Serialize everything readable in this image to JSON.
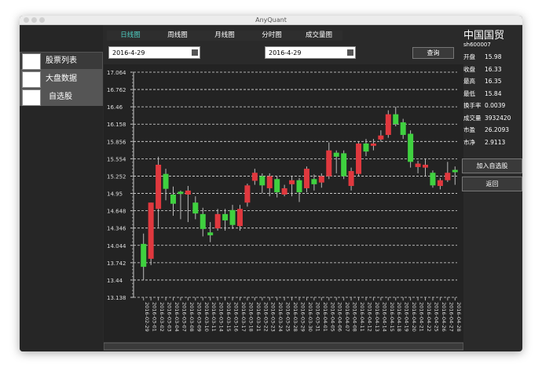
{
  "window": {
    "title": "AnyQuant"
  },
  "sidebar": [
    "股票列表",
    "大盘数据",
    "自选股"
  ],
  "tabs": [
    "日线图",
    "周线图",
    "月线图",
    "分时图",
    "成交量图"
  ],
  "query": {
    "start_date": "2016-4-29",
    "end_date": "2016-4-29",
    "button": "查询"
  },
  "quote": {
    "name": "中国国贸",
    "code": "sh600007",
    "rows": [
      [
        "开盘",
        "15.98"
      ],
      [
        "收盘",
        "16.33"
      ],
      [
        "最高",
        "16.35"
      ],
      [
        "最低",
        "15.84"
      ],
      [
        "换手率",
        "0.0039"
      ],
      [
        "成交量",
        "3932420"
      ],
      [
        "市盈",
        "26.2093"
      ],
      [
        "市净",
        "2.9113"
      ]
    ],
    "buttons": [
      "加入自选股",
      "返回"
    ]
  },
  "chart_data": {
    "type": "candlestick",
    "categories": [
      "2016-02-29",
      "2016-03-01",
      "2016-03-02",
      "2016-03-03",
      "2016-03-04",
      "2016-03-07",
      "2016-03-08",
      "2016-03-09",
      "2016-03-10",
      "2016-03-11",
      "2016-03-14",
      "2016-03-15",
      "2016-03-16",
      "2016-03-17",
      "2016-03-18",
      "2016-03-21",
      "2016-03-22",
      "2016-03-23",
      "2016-03-24",
      "2016-03-25",
      "2016-03-28",
      "2016-03-29",
      "2016-03-30",
      "2016-03-31",
      "2016-04-01",
      "2016-04-05",
      "2016-04-06",
      "2016-04-07",
      "2016-04-08",
      "2016-04-11",
      "2016-04-12",
      "2016-04-13",
      "2016-04-14",
      "2016-04-15",
      "2016-04-18",
      "2016-04-19",
      "2016-04-20",
      "2016-04-21",
      "2016-04-22",
      "2016-04-25",
      "2016-04-26",
      "2016-04-27",
      "2016-04-28"
    ],
    "open": [
      14.07,
      13.81,
      14.68,
      15.29,
      14.93,
      14.98,
      14.93,
      14.79,
      14.59,
      14.27,
      14.34,
      14.59,
      14.66,
      14.38,
      14.79,
      15.17,
      15.25,
      15.04,
      15.2,
      14.93,
      15.11,
      15.18,
      15.04,
      15.2,
      15.14,
      15.25,
      15.66,
      15.65,
      15.08,
      15.29,
      15.82,
      15.78,
      15.89,
      15.97,
      16.33,
      16.19,
      15.99,
      15.41,
      15.4,
      15.31,
      15.08,
      15.18,
      15.36
    ],
    "high": [
      14.25,
      14.79,
      15.59,
      15.38,
      15.07,
      15.0,
      15.08,
      14.9,
      14.7,
      14.45,
      14.68,
      14.68,
      14.75,
      14.75,
      15.12,
      15.38,
      15.3,
      15.3,
      15.25,
      15.1,
      15.25,
      15.22,
      15.42,
      15.28,
      15.3,
      15.84,
      15.7,
      15.7,
      15.4,
      15.86,
      15.9,
      15.9,
      16.05,
      16.4,
      16.46,
      16.25,
      16.05,
      15.52,
      15.55,
      15.35,
      15.22,
      15.5,
      15.42
    ],
    "low": [
      13.44,
      13.7,
      14.36,
      14.83,
      14.56,
      14.5,
      14.45,
      14.5,
      14.2,
      14.1,
      14.3,
      14.3,
      14.33,
      14.3,
      14.72,
      15.1,
      14.95,
      14.9,
      14.88,
      14.9,
      14.9,
      14.8,
      14.97,
      15.0,
      15.05,
      15.2,
      15.3,
      15.2,
      15.0,
      15.25,
      15.6,
      15.7,
      15.85,
      15.92,
      16.12,
      15.9,
      15.4,
      15.3,
      15.25,
      15.05,
      15.02,
      15.15,
      15.1
    ],
    "close": [
      13.67,
      14.79,
      15.45,
      15.03,
      14.77,
      14.94,
      15.0,
      14.6,
      14.33,
      14.22,
      14.59,
      14.48,
      14.4,
      14.68,
      15.09,
      15.31,
      15.09,
      15.25,
      14.97,
      15.04,
      15.18,
      14.97,
      15.38,
      15.11,
      15.25,
      15.7,
      15.59,
      15.25,
      15.34,
      15.82,
      15.68,
      15.82,
      15.96,
      16.33,
      16.16,
      15.97,
      15.5,
      15.47,
      15.45,
      15.09,
      15.18,
      15.31,
      15.32
    ],
    "up_color": "#e0383e",
    "down_color": "#3fd13f",
    "ylim": [
      13.138,
      17.064
    ],
    "yticks": [
      13.138,
      13.44,
      13.742,
      14.044,
      14.346,
      14.648,
      14.95,
      15.252,
      15.554,
      15.856,
      16.158,
      16.46,
      16.762,
      17.064
    ],
    "grid": true
  }
}
